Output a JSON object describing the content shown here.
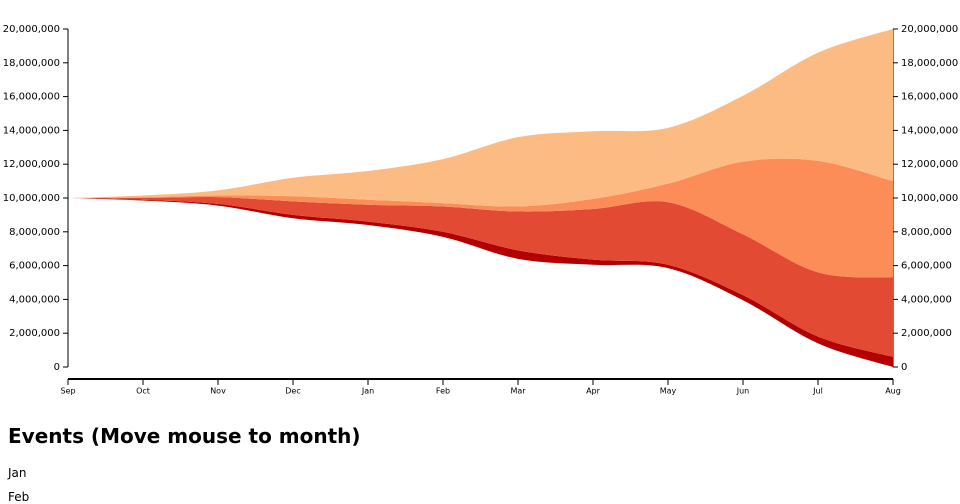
{
  "chart_data": {
    "type": "streamgraph",
    "offset": "silhouette",
    "categories": [
      "Sep",
      "Oct",
      "Nov",
      "Dec",
      "Jan",
      "Feb",
      "Mar",
      "Apr",
      "May",
      "Jun",
      "Jul",
      "Aug"
    ],
    "series": [
      {
        "color": "#b30000",
        "values": [
          0,
          0.05,
          0.1,
          0.2,
          0.2,
          0.3,
          0.5,
          0.3,
          0.2,
          0.3,
          0.4,
          0.6
        ]
      },
      {
        "color": "#e34a33",
        "values": [
          0,
          0.1,
          0.4,
          0.8,
          1.0,
          1.5,
          2.3,
          3.0,
          3.7,
          3.6,
          3.8,
          4.7
        ]
      },
      {
        "color": "#fc8d59",
        "values": [
          0,
          0.05,
          0.1,
          0.3,
          0.3,
          0.2,
          0.3,
          0.6,
          1.1,
          4.3,
          6.6,
          5.7
        ]
      },
      {
        "color": "#fdbb84",
        "values": [
          0,
          0.1,
          0.3,
          1.1,
          1.7,
          2.6,
          4.1,
          4.0,
          3.3,
          3.9,
          6.4,
          9.0
        ]
      }
    ],
    "value_scale": 1000000,
    "ylim": [
      0,
      20000000
    ],
    "yticks": [
      {
        "value": 0,
        "label": "0"
      },
      {
        "value": 2000000,
        "label": "2,000,000"
      },
      {
        "value": 4000000,
        "label": "4,000,000"
      },
      {
        "value": 6000000,
        "label": "6,000,000"
      },
      {
        "value": 8000000,
        "label": "8,000,000"
      },
      {
        "value": 10000000,
        "label": "10,000,000"
      },
      {
        "value": 12000000,
        "label": "12,000,000"
      },
      {
        "value": 14000000,
        "label": "14,000,000"
      },
      {
        "value": 16000000,
        "label": "16,000,000"
      },
      {
        "value": 18000000,
        "label": "18,000,000"
      },
      {
        "value": 20000000,
        "label": "20,000,000"
      }
    ]
  },
  "events": {
    "title": "Events (Move mouse to month)",
    "months": [
      "Jan",
      "Feb"
    ]
  }
}
